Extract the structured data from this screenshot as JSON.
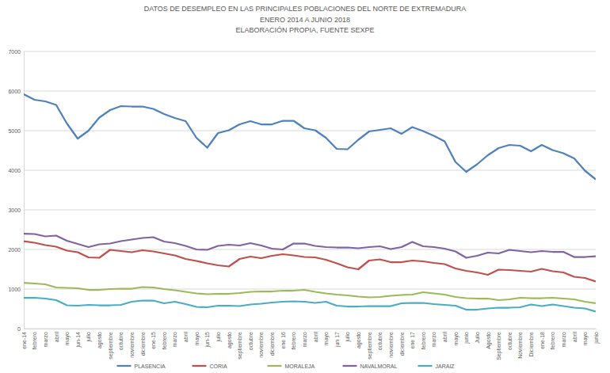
{
  "chart_data": {
    "type": "line",
    "title": "DATOS DE DESEMPLEO EN LAS PRINCIPALES POBLACIONES DEL NORTE DE EXTREMADURA",
    "subtitle": [
      "ENERO 2014 A JUNIO 2018",
      "ELABORACIÓN PROPIA, FUENTE SEXPE"
    ],
    "categories": [
      "ene-14",
      "febrero",
      "marzo",
      "abril",
      "mayo",
      "jun-14",
      "julio",
      "agosto",
      "septiembre",
      "octubre",
      "noviembre",
      "diciembre",
      "ene-15",
      "febrero",
      "marzo",
      "abril",
      "mayo",
      "jun-15",
      "julio",
      "agosto",
      "septiembre",
      "octubre",
      "noviembre",
      "diciembre",
      "ene 16",
      "febrero",
      "marzo",
      "abril",
      "mayo",
      "jun 17",
      "julio",
      "agosto",
      "septiembre",
      "octubre",
      "noviembre",
      "diciembre",
      "ene 17",
      "febrero",
      "marzo",
      "abril",
      "mayo",
      "junio",
      "Julio",
      "Agosto",
      "Septiembre",
      "octubre",
      "Noviembre",
      "Diciembre",
      "ene-18",
      "febrero",
      "marzo",
      "abril",
      "mayo",
      "junio"
    ],
    "series": [
      {
        "name": "PLASENCIA",
        "color": "#4f81bd",
        "values": [
          5920,
          5780,
          5740,
          5650,
          5180,
          4800,
          5000,
          5330,
          5520,
          5620,
          5610,
          5610,
          5550,
          5420,
          5320,
          5240,
          4820,
          4570,
          4940,
          5010,
          5160,
          5240,
          5160,
          5160,
          5250,
          5250,
          5060,
          5010,
          4820,
          4540,
          4530,
          4770,
          4980,
          5020,
          5060,
          4920,
          5090,
          4990,
          4870,
          4730,
          4210,
          3960,
          4150,
          4380,
          4560,
          4640,
          4620,
          4480,
          4640,
          4510,
          4430,
          4300,
          3990,
          3770
        ]
      },
      {
        "name": "CORIA",
        "color": "#c0504d",
        "values": [
          2210,
          2170,
          2110,
          2070,
          1970,
          1930,
          1800,
          1790,
          1990,
          1960,
          1930,
          1980,
          1950,
          1900,
          1850,
          1760,
          1710,
          1650,
          1600,
          1570,
          1760,
          1820,
          1780,
          1840,
          1880,
          1850,
          1810,
          1800,
          1740,
          1650,
          1550,
          1500,
          1720,
          1750,
          1680,
          1680,
          1720,
          1700,
          1660,
          1630,
          1520,
          1460,
          1420,
          1360,
          1490,
          1480,
          1460,
          1440,
          1510,
          1450,
          1420,
          1310,
          1280,
          1190
        ]
      },
      {
        "name": "MORALEJA",
        "color": "#9bbb59",
        "values": [
          1160,
          1140,
          1120,
          1040,
          1030,
          1020,
          980,
          980,
          1000,
          1010,
          1010,
          1050,
          1040,
          1000,
          970,
          930,
          890,
          870,
          880,
          880,
          900,
          930,
          940,
          940,
          960,
          960,
          980,
          930,
          890,
          860,
          840,
          810,
          790,
          800,
          830,
          850,
          860,
          920,
          890,
          860,
          800,
          770,
          760,
          760,
          720,
          740,
          780,
          770,
          770,
          780,
          760,
          740,
          680,
          640
        ]
      },
      {
        "name": "NAVALMORAL",
        "color": "#8064a2",
        "values": [
          2400,
          2390,
          2330,
          2350,
          2220,
          2140,
          2060,
          2130,
          2150,
          2210,
          2250,
          2290,
          2310,
          2200,
          2160,
          2090,
          2000,
          1990,
          2090,
          2120,
          2100,
          2160,
          2100,
          2020,
          2000,
          2150,
          2150,
          2090,
          2060,
          2050,
          2050,
          2030,
          2060,
          2080,
          2010,
          2060,
          2190,
          2080,
          2060,
          2020,
          1950,
          1790,
          1840,
          1920,
          1900,
          1990,
          1960,
          1930,
          1960,
          1940,
          1940,
          1810,
          1810,
          1830
        ]
      },
      {
        "name": "JARAIZ",
        "color": "#4bacc6",
        "values": [
          780,
          780,
          760,
          720,
          590,
          580,
          600,
          590,
          590,
          600,
          680,
          710,
          710,
          640,
          680,
          620,
          550,
          540,
          580,
          580,
          570,
          610,
          630,
          660,
          680,
          690,
          680,
          650,
          680,
          580,
          560,
          560,
          570,
          570,
          570,
          640,
          650,
          650,
          620,
          600,
          580,
          480,
          480,
          510,
          530,
          530,
          540,
          610,
          570,
          610,
          570,
          530,
          510,
          430
        ]
      }
    ],
    "ylim": [
      0,
      7000
    ],
    "yticks": [
      0,
      1000,
      2000,
      3000,
      4000,
      5000,
      6000,
      7000
    ],
    "grid": true,
    "legend": "bottom"
  }
}
